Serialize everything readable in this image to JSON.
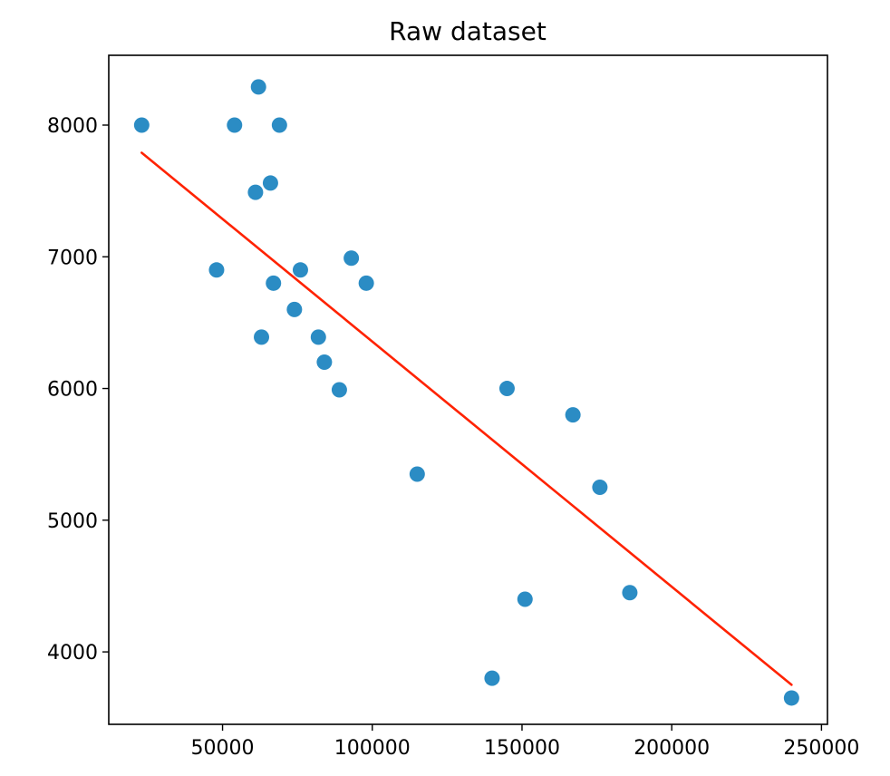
{
  "chart_data": {
    "type": "scatter",
    "title": "Raw dataset",
    "xlabel": "",
    "ylabel": "",
    "xlim": [
      12000,
      252000
    ],
    "ylim": [
      3450,
      8530
    ],
    "x_ticks": [
      50000,
      100000,
      150000,
      200000,
      250000
    ],
    "x_tick_labels": [
      "50000",
      "100000",
      "150000",
      "200000",
      "250000"
    ],
    "y_ticks": [
      4000,
      5000,
      6000,
      7000,
      8000
    ],
    "y_tick_labels": [
      "4000",
      "5000",
      "6000",
      "7000",
      "8000"
    ],
    "grid": false,
    "legend": "none",
    "series": [
      {
        "kind": "scatter",
        "color": "#2b8cc4",
        "points": [
          {
            "x": 23000,
            "y": 8000
          },
          {
            "x": 48000,
            "y": 6900
          },
          {
            "x": 54000,
            "y": 8000
          },
          {
            "x": 61000,
            "y": 7490
          },
          {
            "x": 62000,
            "y": 8290
          },
          {
            "x": 63000,
            "y": 6390
          },
          {
            "x": 66000,
            "y": 7560
          },
          {
            "x": 67000,
            "y": 6800
          },
          {
            "x": 69000,
            "y": 8000
          },
          {
            "x": 74000,
            "y": 6600
          },
          {
            "x": 76000,
            "y": 6900
          },
          {
            "x": 82000,
            "y": 6390
          },
          {
            "x": 84000,
            "y": 6200
          },
          {
            "x": 89000,
            "y": 5990
          },
          {
            "x": 93000,
            "y": 6990
          },
          {
            "x": 98000,
            "y": 6800
          },
          {
            "x": 115000,
            "y": 5350
          },
          {
            "x": 140000,
            "y": 3800
          },
          {
            "x": 145000,
            "y": 6000
          },
          {
            "x": 151000,
            "y": 4400
          },
          {
            "x": 167000,
            "y": 5800
          },
          {
            "x": 176000,
            "y": 5250
          },
          {
            "x": 186000,
            "y": 4450
          },
          {
            "x": 240000,
            "y": 3650
          }
        ]
      },
      {
        "kind": "line",
        "color": "#ff2200",
        "points": [
          {
            "x": 23000,
            "y": 7790
          },
          {
            "x": 240000,
            "y": 3750
          }
        ]
      }
    ]
  }
}
